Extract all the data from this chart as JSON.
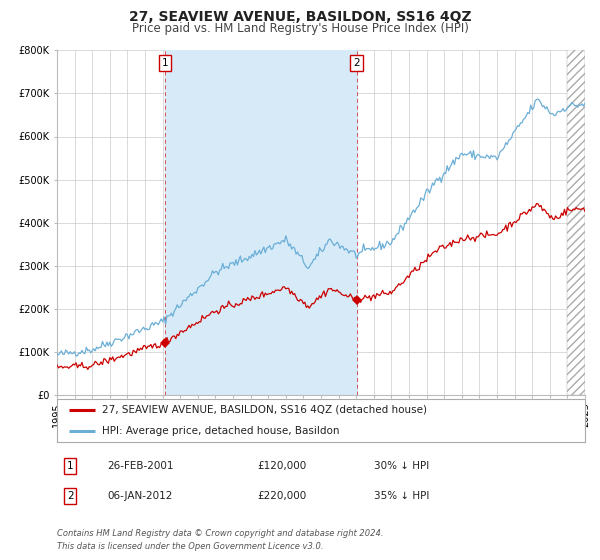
{
  "title": "27, SEAVIEW AVENUE, BASILDON, SS16 4QZ",
  "subtitle": "Price paid vs. HM Land Registry's House Price Index (HPI)",
  "ylim": [
    0,
    800000
  ],
  "xlim_start": 1995.0,
  "xlim_end": 2025.0,
  "yticks": [
    0,
    100000,
    200000,
    300000,
    400000,
    500000,
    600000,
    700000,
    800000
  ],
  "ytick_labels": [
    "£0",
    "£100K",
    "£200K",
    "£300K",
    "£400K",
    "£500K",
    "£600K",
    "£700K",
    "£800K"
  ],
  "xticks": [
    1995,
    1996,
    1997,
    1998,
    1999,
    2000,
    2001,
    2002,
    2003,
    2004,
    2005,
    2006,
    2007,
    2008,
    2009,
    2010,
    2011,
    2012,
    2013,
    2014,
    2015,
    2016,
    2017,
    2018,
    2019,
    2020,
    2021,
    2022,
    2023,
    2024,
    2025
  ],
  "sale1_x": 2001.15,
  "sale1_y": 120000,
  "sale1_label": "1",
  "sale2_x": 2012.02,
  "sale2_y": 220000,
  "sale2_label": "2",
  "shading_start": 2001.15,
  "shading_end": 2012.02,
  "hatch_start": 2024.0,
  "hpi_color": "#6baed6",
  "price_color": "#cc0000",
  "shading_color": "#d6eaf8",
  "grid_color": "#cccccc",
  "bg_color": "#ffffff",
  "legend_label_price": "27, SEAVIEW AVENUE, BASILDON, SS16 4QZ (detached house)",
  "legend_label_hpi": "HPI: Average price, detached house, Basildon",
  "table_row1": [
    "1",
    "26-FEB-2001",
    "£120,000",
    "30% ↓ HPI"
  ],
  "table_row2": [
    "2",
    "06-JAN-2012",
    "£220,000",
    "35% ↓ HPI"
  ],
  "footnote1": "Contains HM Land Registry data © Crown copyright and database right 2024.",
  "footnote2": "This data is licensed under the Open Government Licence v3.0.",
  "title_fontsize": 10,
  "subtitle_fontsize": 8.5,
  "tick_fontsize": 7,
  "legend_fontsize": 7.5,
  "table_fontsize": 7.5,
  "footnote_fontsize": 6
}
